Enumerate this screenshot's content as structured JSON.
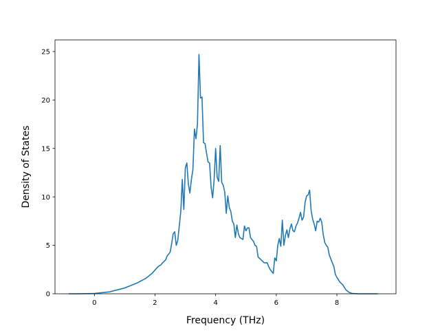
{
  "chart_data": {
    "type": "line",
    "title": "",
    "xlabel": "Frequency (THz)",
    "ylabel": "Density of States",
    "xlim": [
      -1.3,
      9.95
    ],
    "ylim": [
      0,
      26.2
    ],
    "xticks": [
      0,
      2,
      4,
      6,
      8
    ],
    "yticks": [
      0,
      5,
      10,
      15,
      20,
      25
    ],
    "xtick_labels": [
      "0",
      "2",
      "4",
      "6",
      "8"
    ],
    "ytick_labels": [
      "0",
      "5",
      "10",
      "15",
      "20",
      "25"
    ],
    "grid": false,
    "legend": "none",
    "line_color": "#1f77b4",
    "series": [
      {
        "x": [
          -0.85,
          -0.5,
          0,
          0.5,
          1.0,
          1.4,
          1.7,
          1.9,
          2.1,
          2.2,
          2.25,
          2.35,
          2.4,
          2.5,
          2.55,
          2.6,
          2.65,
          2.7,
          2.75,
          2.85,
          2.9,
          2.95,
          3.0,
          3.05,
          3.1,
          3.15,
          3.2,
          3.25,
          3.3,
          3.35,
          3.4,
          3.45,
          3.5,
          3.55,
          3.6,
          3.65,
          3.7,
          3.75,
          3.8,
          3.85,
          3.9,
          3.95,
          4.0,
          4.05,
          4.1,
          4.15,
          4.2,
          4.25,
          4.3,
          4.35,
          4.4,
          4.45,
          4.5,
          4.55,
          4.6,
          4.65,
          4.7,
          4.75,
          4.8,
          4.9,
          4.95,
          5.0,
          5.05,
          5.1,
          5.15,
          5.2,
          5.25,
          5.3,
          5.35,
          5.4,
          5.5,
          5.6,
          5.7,
          5.75,
          5.8,
          5.85,
          5.9,
          5.95,
          6.0,
          6.05,
          6.1,
          6.15,
          6.2,
          6.25,
          6.3,
          6.35,
          6.4,
          6.45,
          6.5,
          6.55,
          6.6,
          6.65,
          6.7,
          6.75,
          6.8,
          6.85,
          6.9,
          6.95,
          7.0,
          7.05,
          7.1,
          7.15,
          7.2,
          7.25,
          7.3,
          7.35,
          7.4,
          7.45,
          7.5,
          7.55,
          7.6,
          7.65,
          7.7,
          7.75,
          7.8,
          7.85,
          7.9,
          7.95,
          8.0,
          8.1,
          8.2,
          8.3,
          8.4,
          8.5,
          8.7,
          9.0,
          9.35
        ],
        "y": [
          0,
          0,
          0.03,
          0.2,
          0.6,
          1.1,
          1.6,
          2.1,
          2.8,
          3.0,
          3.2,
          3.5,
          3.9,
          4.3,
          5.2,
          6.2,
          6.4,
          5.0,
          5.5,
          8.5,
          11.8,
          8.7,
          13.0,
          13.5,
          11.3,
          10.4,
          11.8,
          12.8,
          17.0,
          16.0,
          17.5,
          24.7,
          20.2,
          20.3,
          15.6,
          15.5,
          14.5,
          13.6,
          13.5,
          11.0,
          9.9,
          11.8,
          15.0,
          12.0,
          11.6,
          15.3,
          11.5,
          11.2,
          10.5,
          8.3,
          10.1,
          8.9,
          8.5,
          7.5,
          7.2,
          5.8,
          7.1,
          6.2,
          5.8,
          5.6,
          7.0,
          6.5,
          6.8,
          6.8,
          5.8,
          5.6,
          5.4,
          5.0,
          4.9,
          3.8,
          3.5,
          3.2,
          3.2,
          2.8,
          2.5,
          2.3,
          2.1,
          3.7,
          3.4,
          5.0,
          5.7,
          4.9,
          7.6,
          5.0,
          6.0,
          6.6,
          5.8,
          6.7,
          7.2,
          6.5,
          6.4,
          7.0,
          7.3,
          7.8,
          8.4,
          7.6,
          7.9,
          9.4,
          10.1,
          10.2,
          10.7,
          8.6,
          7.7,
          7.2,
          6.5,
          7.5,
          7.4,
          7.8,
          7.4,
          6.1,
          5.3,
          5.0,
          4.8,
          4.0,
          3.6,
          3.2,
          2.8,
          2.0,
          1.7,
          1.2,
          0.9,
          0.4,
          0.15,
          0.03,
          0,
          0,
          0
        ]
      }
    ]
  }
}
